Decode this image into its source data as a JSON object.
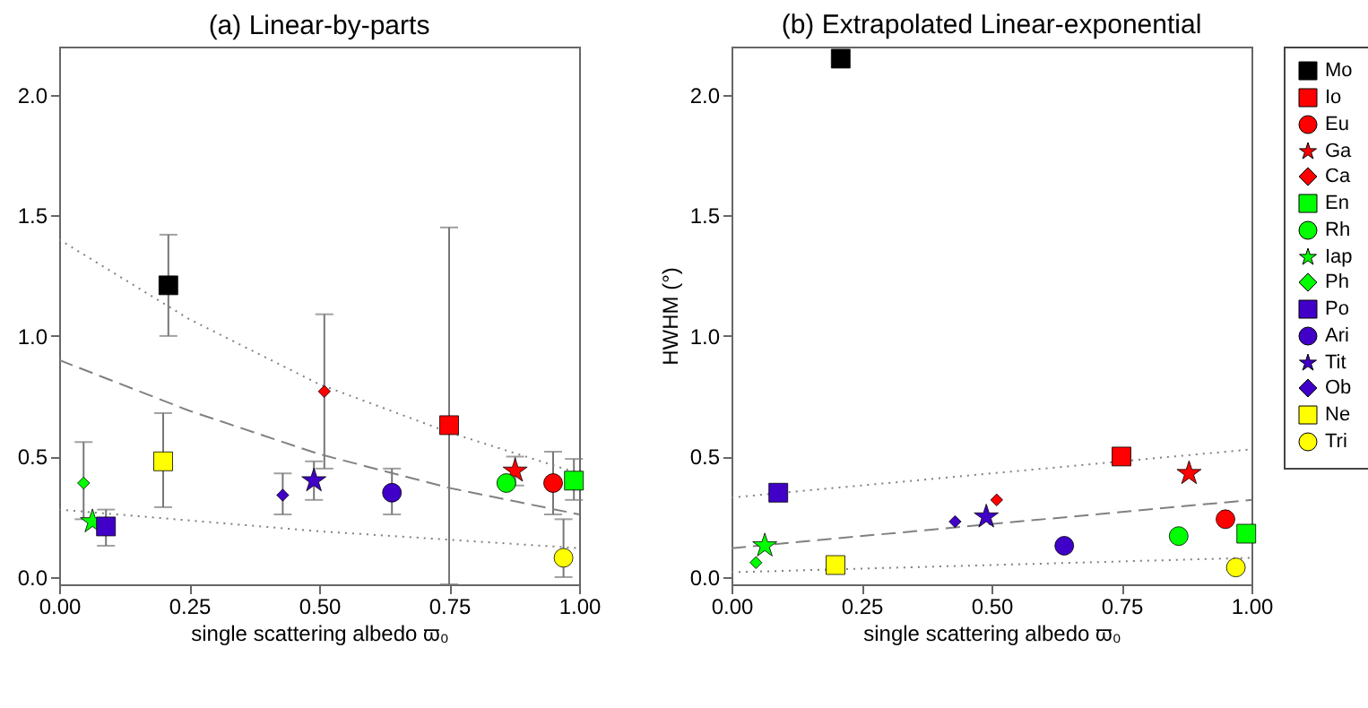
{
  "chart_data": [
    {
      "type": "scatter",
      "title": "(a) Linear-by-parts",
      "xlabel": "single scattering albedo ϖ₀",
      "xlim": [
        0,
        1
      ],
      "ylim": [
        -0.03,
        2.2
      ],
      "xticks": [
        {
          "value": 0,
          "label": "0.00"
        },
        {
          "value": 0.25,
          "label": "0.25"
        },
        {
          "value": 0.5,
          "label": "0.50"
        },
        {
          "value": 0.75,
          "label": "0.75"
        },
        {
          "value": 1,
          "label": "1.00"
        }
      ],
      "yticks": [
        {
          "value": 0,
          "label": "0.0"
        },
        {
          "value": 0.5,
          "label": "0.5"
        },
        {
          "value": 1,
          "label": "1.0"
        },
        {
          "value": 1.5,
          "label": "1.5"
        },
        {
          "value": 2,
          "label": "2.0"
        }
      ],
      "grid": false,
      "series": [
        {
          "color": "#000000",
          "marker": "square",
          "x": [
            0.21
          ],
          "values": [
            1.21
          ],
          "errors": [
            [
              1.0,
              1.42
            ]
          ]
        },
        {
          "color": "#ff0000",
          "marker": "square",
          "x": [
            0.75
          ],
          "values": [
            0.63
          ],
          "errors": [
            [
              -0.03,
              1.45
            ]
          ]
        },
        {
          "color": "#ff0000",
          "marker": "circle",
          "x": [
            0.95
          ],
          "values": [
            0.39
          ],
          "errors": [
            [
              0.26,
              0.52
            ]
          ]
        },
        {
          "color": "#ff0000",
          "marker": "star",
          "x": [
            0.877
          ],
          "values": [
            0.44
          ],
          "errors": [
            [
              0.38,
              0.5
            ]
          ]
        },
        {
          "color": "#ff0000",
          "marker": "diamond",
          "x": [
            0.51
          ],
          "values": [
            0.77
          ],
          "errors": [
            [
              0.45,
              1.09
            ]
          ]
        },
        {
          "color": "#00ff00",
          "marker": "square",
          "x": [
            0.99
          ],
          "values": [
            0.4
          ],
          "errors": [
            [
              0.32,
              0.49
            ]
          ]
        },
        {
          "color": "#00ff00",
          "marker": "circle",
          "x": [
            0.86
          ],
          "values": [
            0.39
          ]
        },
        {
          "color": "#00ff00",
          "marker": "star",
          "x": [
            0.064
          ],
          "values": [
            0.23
          ]
        },
        {
          "color": "#00ff00",
          "marker": "diamond",
          "x": [
            0.047
          ],
          "values": [
            0.39
          ],
          "errors": [
            [
              0.24,
              0.56
            ]
          ]
        },
        {
          "color": "#4000c8",
          "marker": "square",
          "x": [
            0.09
          ],
          "values": [
            0.21
          ],
          "errors": [
            [
              0.13,
              0.28
            ]
          ]
        },
        {
          "color": "#4000c8",
          "marker": "circle",
          "x": [
            0.64
          ],
          "values": [
            0.35
          ],
          "errors": [
            [
              0.26,
              0.45
            ]
          ]
        },
        {
          "color": "#4000c8",
          "marker": "star",
          "x": [
            0.49
          ],
          "values": [
            0.4
          ],
          "errors": [
            [
              0.32,
              0.48
            ]
          ]
        },
        {
          "color": "#4000c8",
          "marker": "diamond",
          "x": [
            0.43
          ],
          "values": [
            0.34
          ],
          "errors": [
            [
              0.26,
              0.43
            ]
          ]
        },
        {
          "color": "#ffff00",
          "marker": "square",
          "x": [
            0.2
          ],
          "values": [
            0.48
          ],
          "errors": [
            [
              0.29,
              0.68
            ]
          ]
        },
        {
          "color": "#ffff00",
          "marker": "circle",
          "x": [
            0.97
          ],
          "values": [
            0.08
          ],
          "errors": [
            [
              0.0,
              0.24
            ]
          ]
        },
        {
          "type": "line",
          "color": "#808080",
          "line_style": "dotted",
          "marker": "none",
          "x": [
            0,
            0.25,
            0.5,
            0.75,
            1
          ],
          "values": [
            1.4,
            1.07,
            0.8,
            0.6,
            0.43
          ]
        },
        {
          "type": "line",
          "color": "#808080",
          "line_style": "dashed",
          "marker": "none",
          "x": [
            0,
            0.25,
            0.5,
            0.75,
            1
          ],
          "values": [
            0.9,
            0.69,
            0.51,
            0.37,
            0.26
          ]
        },
        {
          "type": "line",
          "color": "#808080",
          "line_style": "dotted",
          "marker": "none",
          "x": [
            0,
            0.5,
            1
          ],
          "values": [
            0.28,
            0.19,
            0.12
          ]
        }
      ]
    },
    {
      "type": "scatter",
      "title": "(b) Extrapolated Linear-exponential",
      "xlabel": "single scattering albedo ϖ₀",
      "ylabel": "HWHM (°)",
      "xlim": [
        0,
        1
      ],
      "ylim": [
        -0.03,
        2.2
      ],
      "xticks": [
        {
          "value": 0,
          "label": "0.00"
        },
        {
          "value": 0.25,
          "label": "0.25"
        },
        {
          "value": 0.5,
          "label": "0.50"
        },
        {
          "value": 0.75,
          "label": "0.75"
        },
        {
          "value": 1,
          "label": "1.00"
        }
      ],
      "yticks": [
        {
          "value": 0,
          "label": "0.0"
        },
        {
          "value": 0.5,
          "label": "0.5"
        },
        {
          "value": 1,
          "label": "1.0"
        },
        {
          "value": 1.5,
          "label": "1.5"
        },
        {
          "value": 2,
          "label": "2.0"
        }
      ],
      "grid": false,
      "legend": "top right",
      "series": [
        {
          "name": "Mo",
          "color": "#000000",
          "marker": "square",
          "x": [
            0.21
          ],
          "values": [
            2.15
          ]
        },
        {
          "name": "Io",
          "color": "#ff0000",
          "marker": "square",
          "x": [
            0.75
          ],
          "values": [
            0.5
          ]
        },
        {
          "name": "Eu",
          "color": "#ff0000",
          "marker": "circle",
          "x": [
            0.95
          ],
          "values": [
            0.24
          ]
        },
        {
          "name": "Ga",
          "color": "#ff0000",
          "marker": "star",
          "x": [
            0.88
          ],
          "values": [
            0.43
          ]
        },
        {
          "name": "Ca",
          "color": "#ff0000",
          "marker": "diamond",
          "x": [
            0.51
          ],
          "values": [
            0.32
          ]
        },
        {
          "name": "En",
          "color": "#00ff00",
          "marker": "square",
          "x": [
            0.99
          ],
          "values": [
            0.18
          ]
        },
        {
          "name": "Rh",
          "color": "#00ff00",
          "marker": "circle",
          "x": [
            0.86
          ],
          "values": [
            0.17
          ]
        },
        {
          "name": "Iap",
          "color": "#00ff00",
          "marker": "star",
          "x": [
            0.064
          ],
          "values": [
            0.13
          ]
        },
        {
          "name": "Ph",
          "color": "#00ff00",
          "marker": "diamond",
          "x": [
            0.047
          ],
          "values": [
            0.06
          ]
        },
        {
          "name": "Po",
          "color": "#4000c8",
          "marker": "square",
          "x": [
            0.09
          ],
          "values": [
            0.35
          ]
        },
        {
          "name": "Ari",
          "color": "#4000c8",
          "marker": "circle",
          "x": [
            0.64
          ],
          "values": [
            0.13
          ]
        },
        {
          "name": "Tit",
          "color": "#4000c8",
          "marker": "star",
          "x": [
            0.49
          ],
          "values": [
            0.25
          ]
        },
        {
          "name": "Ob",
          "color": "#4000c8",
          "marker": "diamond",
          "x": [
            0.43
          ],
          "values": [
            0.23
          ]
        },
        {
          "name": "Ne",
          "color": "#ffff00",
          "marker": "square",
          "x": [
            0.2
          ],
          "values": [
            0.05
          ]
        },
        {
          "name": "Tri",
          "color": "#ffff00",
          "marker": "circle",
          "x": [
            0.97
          ],
          "values": [
            0.04
          ]
        },
        {
          "type": "line",
          "color": "#808080",
          "line_style": "dotted",
          "marker": "none",
          "x": [
            0,
            1
          ],
          "values": [
            0.33,
            0.53
          ]
        },
        {
          "type": "line",
          "color": "#808080",
          "line_style": "dashed",
          "marker": "none",
          "x": [
            0,
            1
          ],
          "values": [
            0.12,
            0.32
          ]
        },
        {
          "type": "line",
          "color": "#808080",
          "line_style": "dotted",
          "marker": "none",
          "x": [
            0,
            1
          ],
          "values": [
            0.02,
            0.08
          ]
        }
      ]
    }
  ]
}
